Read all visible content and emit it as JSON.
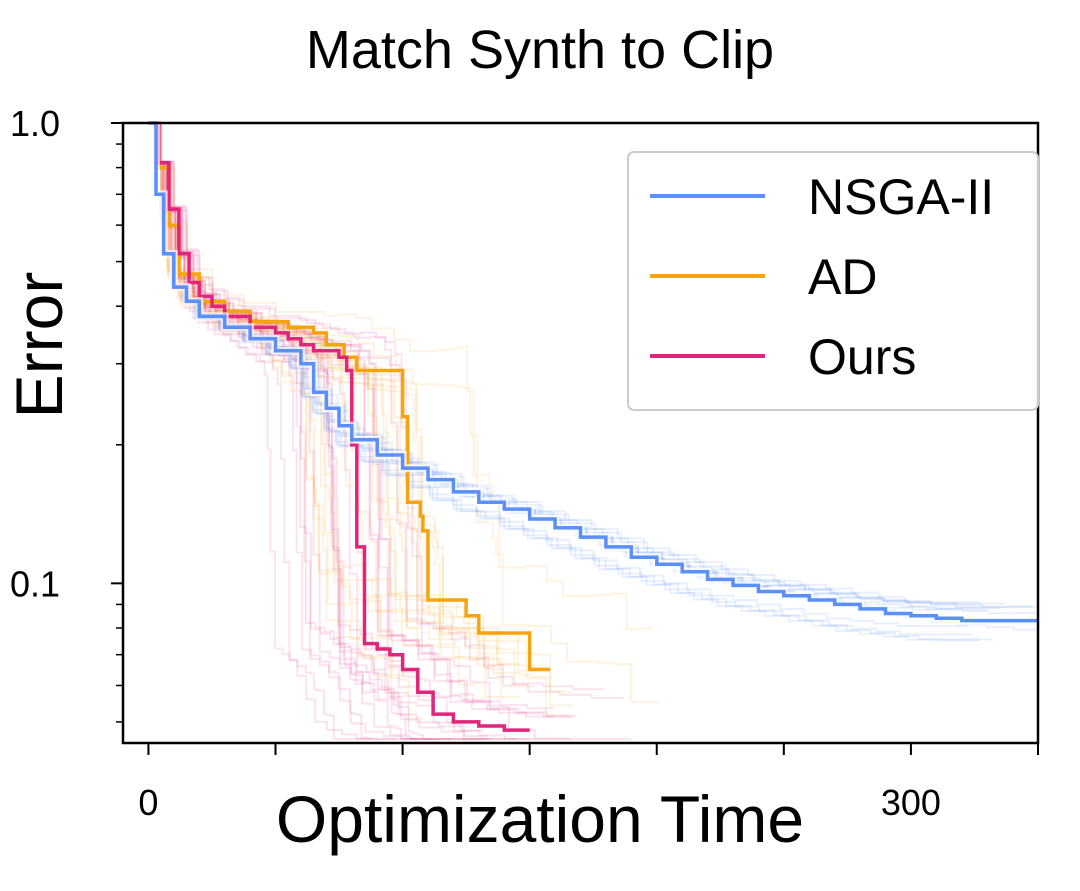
{
  "chart_data": {
    "type": "line",
    "title": "Match Synth to Clip",
    "xlabel": "Optimization Time",
    "ylabel": "Error",
    "yscale": "log",
    "xlim": [
      -10,
      350
    ],
    "ylim": [
      0.045,
      1.0
    ],
    "x_tick_positions": [
      0,
      50,
      100,
      150,
      200,
      250,
      300,
      350
    ],
    "x_tick_labels": [
      {
        "x": 0,
        "text": "0"
      },
      {
        "x": 300,
        "text": "300"
      }
    ],
    "y_major_ticks": [
      {
        "y": 1.0,
        "text": "1.0"
      },
      {
        "y": 0.1,
        "text": "0.1"
      }
    ],
    "y_minor_ticks": [
      0.05,
      0.06,
      0.07,
      0.08,
      0.09,
      0.2,
      0.3,
      0.4,
      0.5,
      0.6,
      0.7,
      0.8,
      0.9
    ],
    "grid": false,
    "legend_position": "top-right",
    "series": [
      {
        "name": "NSGA-II",
        "color": "#5b8ff9",
        "x": [
          0,
          3,
          6,
          10,
          15,
          20,
          30,
          40,
          50,
          60,
          65,
          70,
          75,
          80,
          90,
          100,
          110,
          120,
          130,
          140,
          150,
          160,
          170,
          180,
          190,
          200,
          210,
          220,
          230,
          240,
          250,
          260,
          270,
          280,
          290,
          300,
          310,
          320,
          330,
          350
        ],
        "values": [
          1.0,
          0.7,
          0.52,
          0.44,
          0.41,
          0.38,
          0.36,
          0.34,
          0.32,
          0.3,
          0.26,
          0.24,
          0.22,
          0.205,
          0.19,
          0.178,
          0.168,
          0.158,
          0.15,
          0.145,
          0.138,
          0.132,
          0.126,
          0.12,
          0.114,
          0.11,
          0.106,
          0.102,
          0.099,
          0.096,
          0.094,
          0.092,
          0.09,
          0.088,
          0.086,
          0.085,
          0.084,
          0.083,
          0.083,
          0.083
        ]
      },
      {
        "name": "AD",
        "color": "#f5a40f",
        "x": [
          0,
          4,
          8,
          12,
          20,
          30,
          40,
          55,
          60,
          65,
          70,
          77,
          82,
          90,
          95,
          98,
          100,
          102,
          105,
          107,
          108,
          110,
          118,
          125,
          130,
          140,
          145,
          150,
          158
        ],
        "values": [
          1.0,
          0.8,
          0.6,
          0.47,
          0.41,
          0.39,
          0.37,
          0.36,
          0.36,
          0.35,
          0.33,
          0.31,
          0.29,
          0.29,
          0.29,
          0.29,
          0.23,
          0.15,
          0.15,
          0.14,
          0.13,
          0.092,
          0.092,
          0.085,
          0.078,
          0.078,
          0.078,
          0.065,
          0.065
        ]
      },
      {
        "name": "Ours",
        "color": "#e0257a",
        "x": [
          0,
          4,
          8,
          12,
          16,
          20,
          25,
          30,
          40,
          50,
          55,
          60,
          65,
          70,
          75,
          78,
          80,
          82,
          85,
          90,
          95,
          98,
          100,
          102,
          106,
          108,
          110,
          112,
          115,
          120,
          130,
          140,
          150
        ],
        "values": [
          1.0,
          0.82,
          0.65,
          0.52,
          0.45,
          0.42,
          0.4,
          0.38,
          0.36,
          0.35,
          0.34,
          0.33,
          0.32,
          0.32,
          0.31,
          0.29,
          0.2,
          0.12,
          0.074,
          0.072,
          0.07,
          0.07,
          0.065,
          0.065,
          0.058,
          0.058,
          0.058,
          0.052,
          0.052,
          0.05,
          0.049,
          0.048,
          0.048
        ]
      }
    ]
  }
}
